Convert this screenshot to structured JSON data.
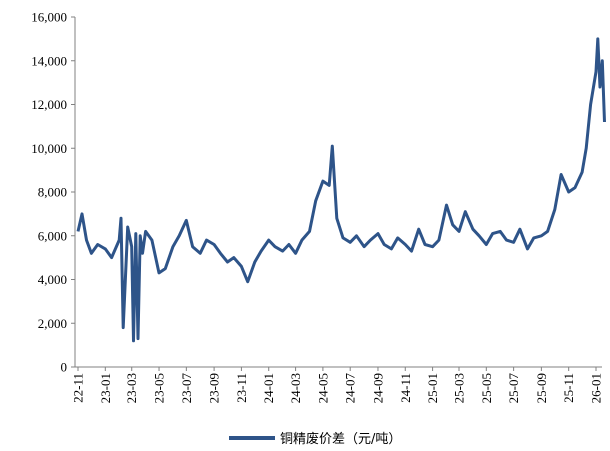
{
  "chart_data": {
    "type": "line",
    "title": "",
    "xlabel": "",
    "ylabel": "",
    "ylim": [
      0,
      16000
    ],
    "y_ticks": [
      0,
      2000,
      4000,
      6000,
      8000,
      10000,
      12000,
      14000,
      16000
    ],
    "y_tick_labels": [
      "0",
      "2,000",
      "4,000",
      "6,000",
      "8,000",
      "10,000",
      "12,000",
      "14,000",
      "16,000"
    ],
    "x_tick_labels": [
      "22-11",
      "23-01",
      "23-03",
      "23-05",
      "23-07",
      "23-09",
      "23-11",
      "24-01",
      "24-03",
      "24-05",
      "24-07",
      "24-09",
      "24-11",
      "25-01",
      "25-03",
      "25-05",
      "25-07",
      "25-09",
      "25-11",
      "26-01"
    ],
    "legend_position": "bottom",
    "grid": false,
    "series": [
      {
        "name": "铜精废价差（元/吨）",
        "color": "#2E5489",
        "x": [
          "2022-11-01",
          "2022-11-10",
          "2022-11-20",
          "2022-12-01",
          "2022-12-15",
          "2023-01-01",
          "2023-01-15",
          "2023-02-01",
          "2023-02-05",
          "2023-02-10",
          "2023-02-20",
          "2023-03-01",
          "2023-03-05",
          "2023-03-10",
          "2023-03-15",
          "2023-03-20",
          "2023-03-25",
          "2023-04-01",
          "2023-04-15",
          "2023-05-01",
          "2023-05-15",
          "2023-06-01",
          "2023-06-15",
          "2023-07-01",
          "2023-07-15",
          "2023-08-01",
          "2023-08-15",
          "2023-09-01",
          "2023-09-15",
          "2023-10-01",
          "2023-10-15",
          "2023-11-01",
          "2023-11-15",
          "2023-12-01",
          "2023-12-15",
          "2024-01-01",
          "2024-01-15",
          "2024-02-01",
          "2024-02-15",
          "2024-03-01",
          "2024-03-15",
          "2024-04-01",
          "2024-04-15",
          "2024-05-01",
          "2024-05-15",
          "2024-05-22",
          "2024-06-01",
          "2024-06-15",
          "2024-07-01",
          "2024-07-15",
          "2024-08-01",
          "2024-08-15",
          "2024-09-01",
          "2024-09-15",
          "2024-10-01",
          "2024-10-15",
          "2024-11-01",
          "2024-11-15",
          "2024-12-01",
          "2024-12-15",
          "2025-01-01",
          "2025-01-15",
          "2025-02-01",
          "2025-02-15",
          "2025-03-01",
          "2025-03-15",
          "2025-04-01",
          "2025-04-15",
          "2025-05-01",
          "2025-05-15",
          "2025-06-01",
          "2025-06-15",
          "2025-07-01",
          "2025-07-15",
          "2025-08-01",
          "2025-08-15",
          "2025-09-01",
          "2025-09-15",
          "2025-10-01",
          "2025-10-15",
          "2025-11-01",
          "2025-11-15",
          "2025-12-01",
          "2025-12-10",
          "2025-12-20",
          "2026-01-01",
          "2026-01-05",
          "2026-01-10",
          "2026-01-15",
          "2026-01-20"
        ],
        "values": [
          6200,
          7000,
          5800,
          5200,
          5600,
          5400,
          5000,
          5800,
          6800,
          1800,
          6400,
          5500,
          1200,
          6100,
          1300,
          6000,
          5200,
          6200,
          5800,
          4300,
          4500,
          5500,
          6000,
          6700,
          5500,
          5200,
          5800,
          5600,
          5200,
          4800,
          5000,
          4600,
          3900,
          4800,
          5300,
          5800,
          5500,
          5300,
          5600,
          5200,
          5800,
          6200,
          7600,
          8500,
          8300,
          10100,
          6800,
          5900,
          5700,
          6000,
          5500,
          5800,
          6100,
          5600,
          5400,
          5900,
          5600,
          5300,
          6300,
          5600,
          5500,
          5800,
          7400,
          6500,
          6200,
          7100,
          6300,
          6000,
          5600,
          6100,
          6200,
          5800,
          5700,
          6300,
          5400,
          5900,
          6000,
          6200,
          7200,
          8800,
          8000,
          8200,
          8900,
          10000,
          12000,
          13500,
          15000,
          12800,
          14000,
          11200
        ]
      }
    ]
  }
}
